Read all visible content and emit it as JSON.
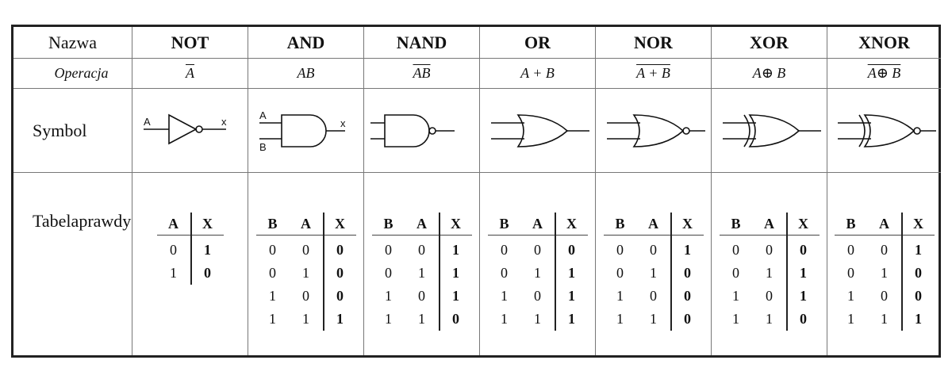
{
  "row_labels": {
    "name": "Nazwa",
    "operation": "Operacja",
    "symbol": "Symbol",
    "truth_table_line1": "Tabela",
    "truth_table_line2": "prawdy"
  },
  "gates": [
    {
      "name": "NOT",
      "op_parts": [
        {
          "t": "A",
          "over": true
        }
      ]
    },
    {
      "name": "AND",
      "op_parts": [
        {
          "t": "AB",
          "over": false
        }
      ]
    },
    {
      "name": "NAND",
      "op_parts": [
        {
          "t": "AB",
          "over": true
        }
      ]
    },
    {
      "name": "OR",
      "op_parts": [
        {
          "t": "A + B",
          "over": false
        }
      ]
    },
    {
      "name": "NOR",
      "op_parts": [
        {
          "t": "A + B",
          "over": true
        }
      ]
    },
    {
      "name": "XOR",
      "op_parts": [
        {
          "t": "A⊕ B",
          "over": false
        }
      ]
    },
    {
      "name": "XNOR",
      "op_parts": [
        {
          "t": "A⊕ B",
          "over": true
        }
      ]
    }
  ],
  "not_symbol_labels": {
    "input": "A",
    "output": "x"
  },
  "and_symbol_labels": {
    "input_a": "A",
    "input_b": "B",
    "output": "x"
  },
  "truth_tables": [
    {
      "headers": [
        "A",
        "X"
      ],
      "rows": [
        [
          "0",
          "1"
        ],
        [
          "1",
          "0"
        ]
      ]
    },
    {
      "headers": [
        "B",
        "A",
        "X"
      ],
      "rows": [
        [
          "0",
          "0",
          "0"
        ],
        [
          "0",
          "1",
          "0"
        ],
        [
          "1",
          "0",
          "0"
        ],
        [
          "1",
          "1",
          "1"
        ]
      ]
    },
    {
      "headers": [
        "B",
        "A",
        "X"
      ],
      "rows": [
        [
          "0",
          "0",
          "1"
        ],
        [
          "0",
          "1",
          "1"
        ],
        [
          "1",
          "0",
          "1"
        ],
        [
          "1",
          "1",
          "0"
        ]
      ]
    },
    {
      "headers": [
        "B",
        "A",
        "X"
      ],
      "rows": [
        [
          "0",
          "0",
          "0"
        ],
        [
          "0",
          "1",
          "1"
        ],
        [
          "1",
          "0",
          "1"
        ],
        [
          "1",
          "1",
          "1"
        ]
      ]
    },
    {
      "headers": [
        "B",
        "A",
        "X"
      ],
      "rows": [
        [
          "0",
          "0",
          "1"
        ],
        [
          "0",
          "1",
          "0"
        ],
        [
          "1",
          "0",
          "0"
        ],
        [
          "1",
          "1",
          "0"
        ]
      ]
    },
    {
      "headers": [
        "B",
        "A",
        "X"
      ],
      "rows": [
        [
          "0",
          "0",
          "0"
        ],
        [
          "0",
          "1",
          "1"
        ],
        [
          "1",
          "0",
          "1"
        ],
        [
          "1",
          "1",
          "0"
        ]
      ]
    },
    {
      "headers": [
        "B",
        "A",
        "X"
      ],
      "rows": [
        [
          "0",
          "0",
          "1"
        ],
        [
          "0",
          "1",
          "0"
        ],
        [
          "1",
          "0",
          "0"
        ],
        [
          "1",
          "1",
          "1"
        ]
      ]
    }
  ]
}
